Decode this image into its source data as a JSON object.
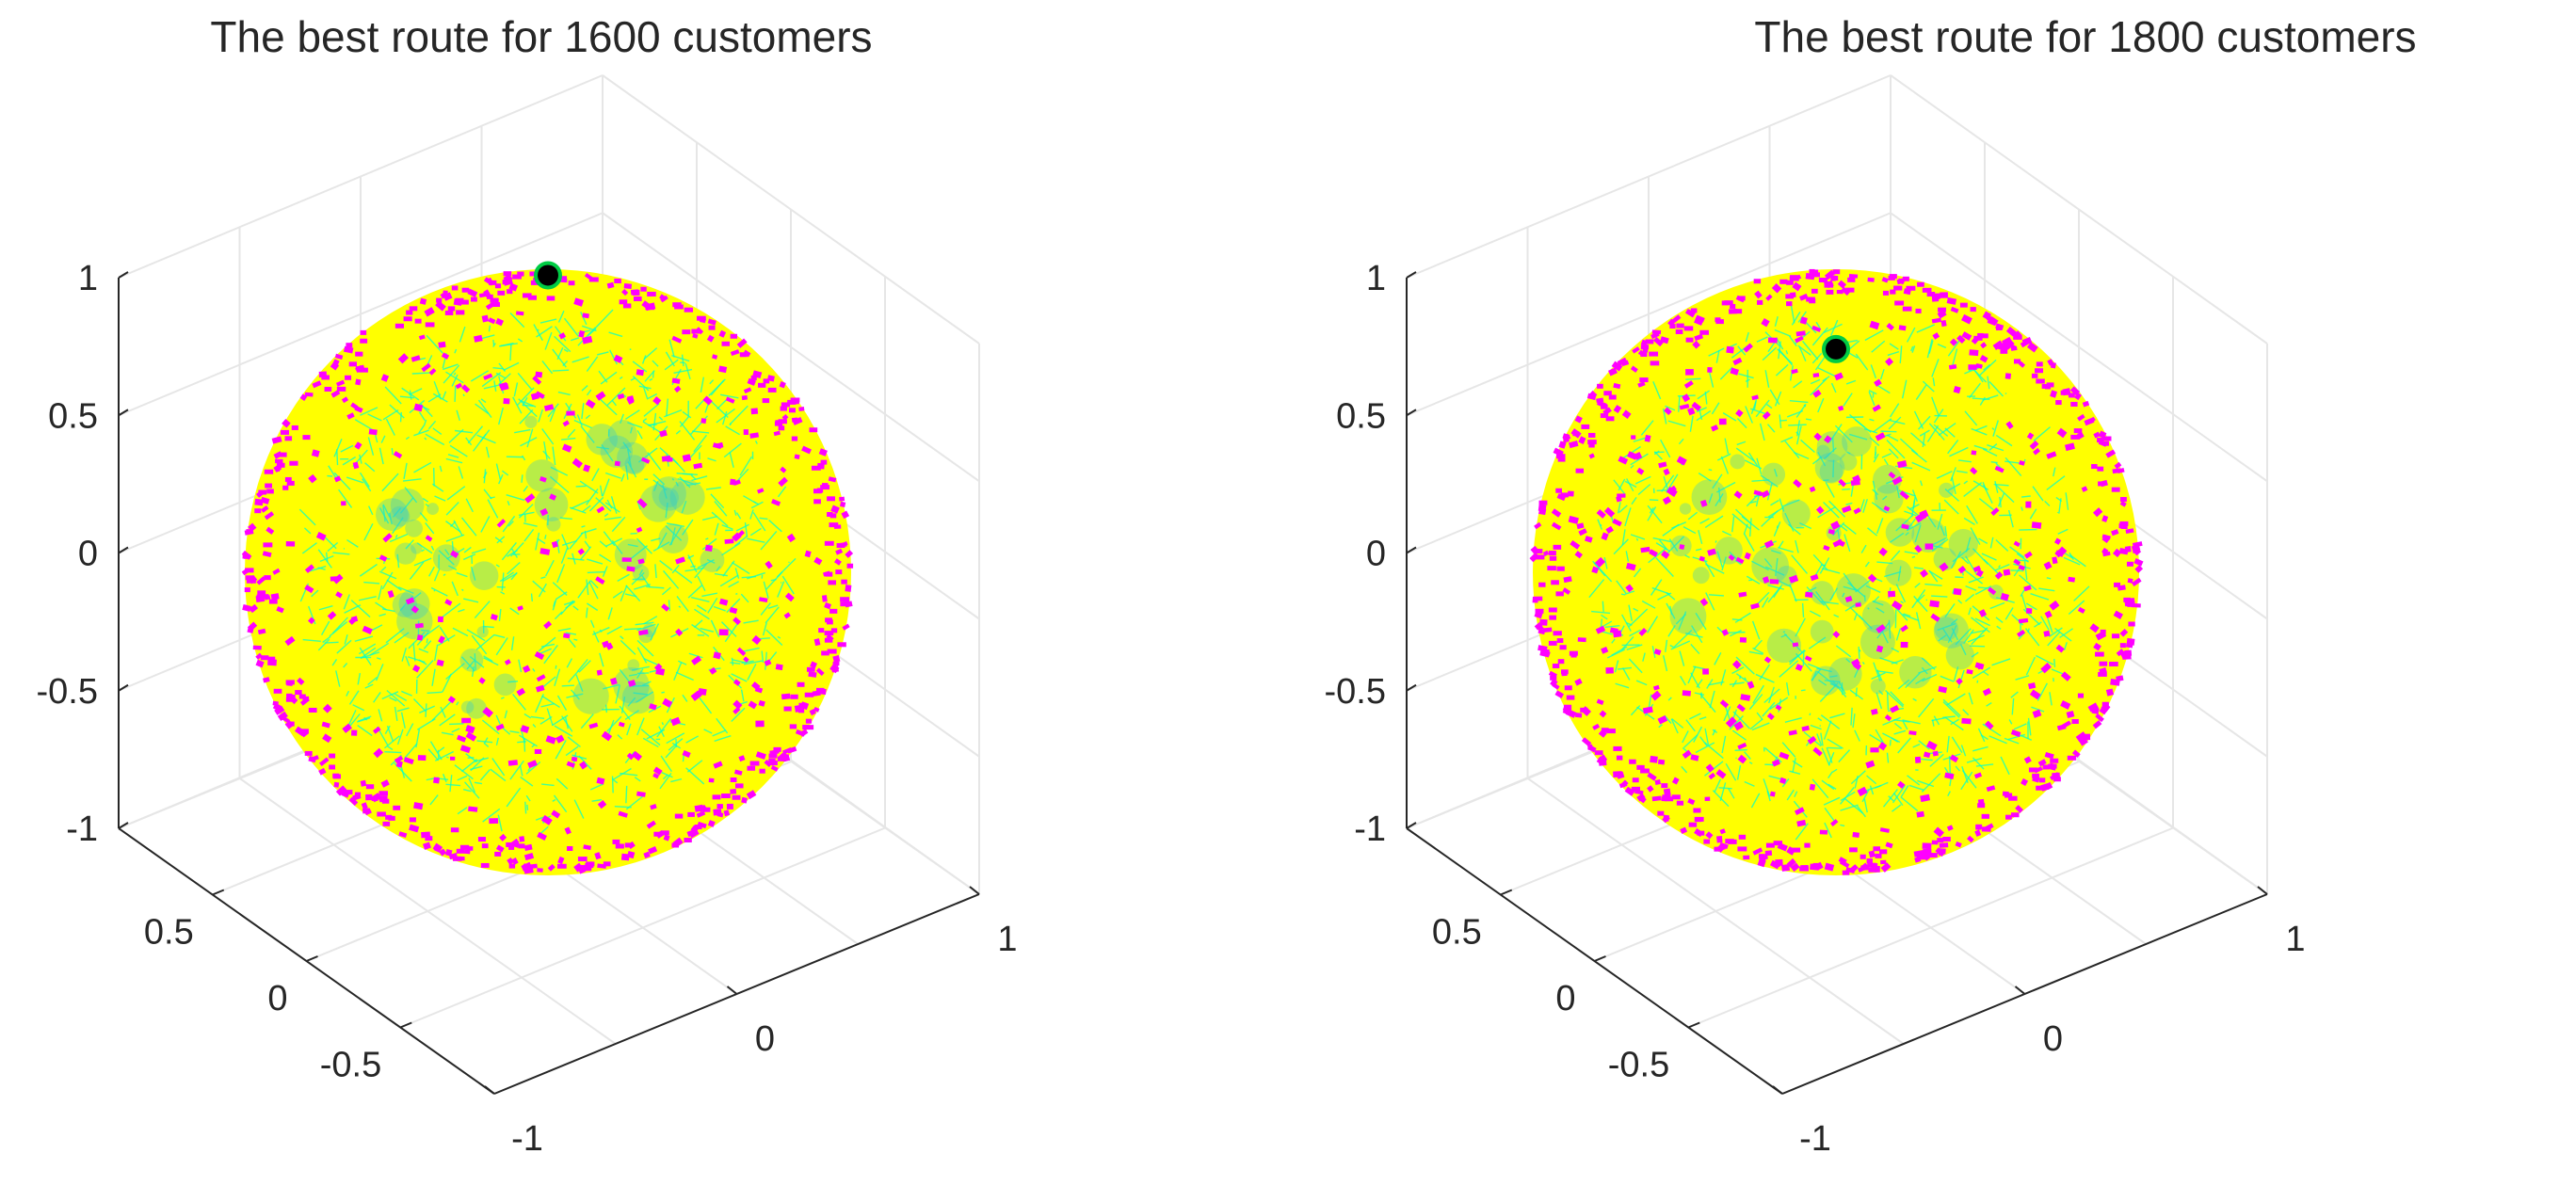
{
  "chart_data": [
    {
      "type": "scatter",
      "subtype": "scatter3d",
      "title": "The best route for 1600 customers",
      "customers": 1600,
      "shape": "unit sphere",
      "xlim": [
        -1,
        1
      ],
      "ylim": [
        -1,
        1
      ],
      "zlim": [
        -1,
        1
      ],
      "zticks": [
        "1",
        "0.5",
        "0",
        "-0.5",
        "-1"
      ],
      "yticks": [
        "0.5",
        "0",
        "-0.5"
      ],
      "xticks": [
        "-1",
        "0",
        "1"
      ],
      "grid": true,
      "colors": {
        "surface": "#ffff00",
        "customers": "#ff00ff",
        "route": "#00ffcc",
        "depot": "#000000",
        "depot_ring": "#00cc44"
      },
      "depot": {
        "x": 0.0,
        "y": 0.0,
        "z": 1.0
      }
    },
    {
      "type": "scatter",
      "subtype": "scatter3d",
      "title": "The best route for 1800 customers",
      "customers": 1800,
      "shape": "unit sphere",
      "xlim": [
        -1,
        1
      ],
      "ylim": [
        -1,
        1
      ],
      "zlim": [
        -1,
        1
      ],
      "zticks": [
        "1",
        "0.5",
        "0",
        "-0.5",
        "-1"
      ],
      "yticks": [
        "0.5",
        "0",
        "-0.5"
      ],
      "xticks": [
        "-1",
        "0",
        "1"
      ],
      "grid": true,
      "colors": {
        "surface": "#ffff00",
        "customers": "#ff00ff",
        "route": "#00ffcc",
        "depot": "#000000",
        "depot_ring": "#00cc44"
      },
      "depot": {
        "x": 0.0,
        "y": 0.35,
        "z": 0.94
      }
    }
  ]
}
